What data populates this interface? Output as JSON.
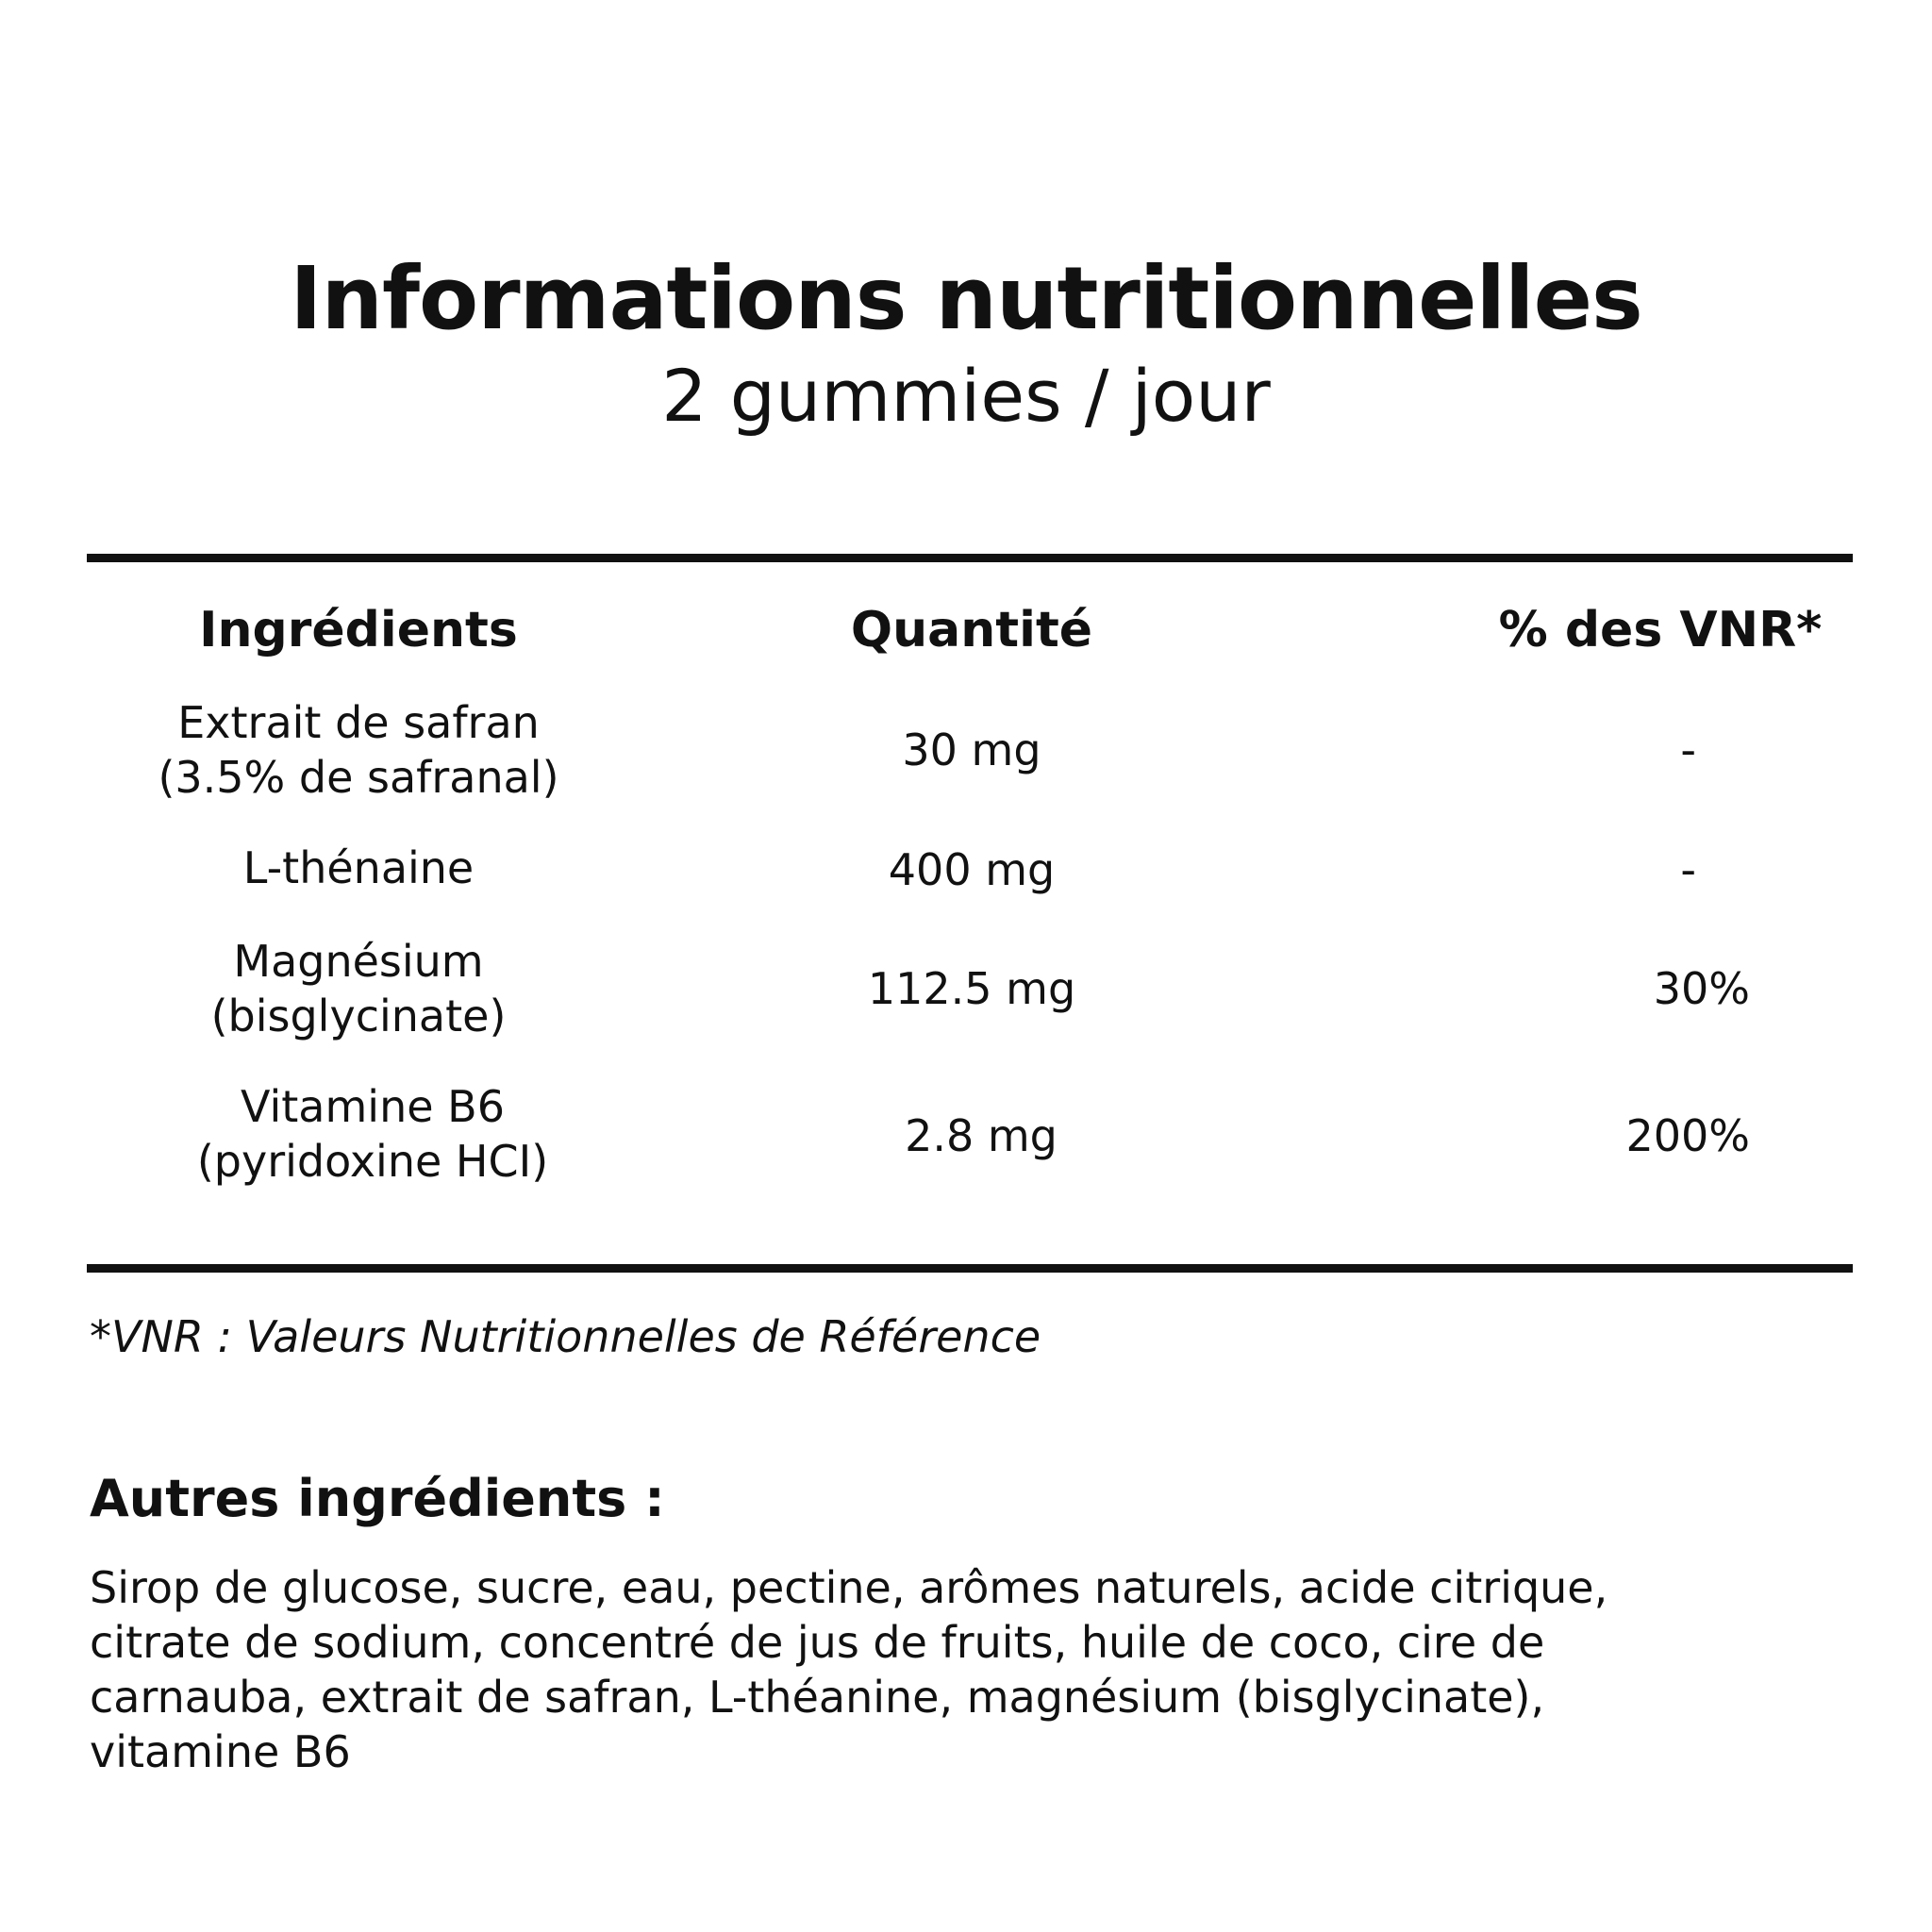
{
  "header": {
    "title": "Informations nutritionnelles",
    "subtitle": "2 gummies / jour"
  },
  "table": {
    "headers": {
      "ingredients": "Ingrédients",
      "quantity": "Quantité",
      "vnr": "% des VNR*"
    },
    "rows": [
      {
        "ingredient_line1": "Extrait de safran",
        "ingredient_line2": "(3.5% de safranal)",
        "quantity": "30 mg",
        "vnr": "-"
      },
      {
        "ingredient_line1": "L-thénaine",
        "ingredient_line2": "",
        "quantity": "400 mg",
        "vnr": "-"
      },
      {
        "ingredient_line1": "Magnésium",
        "ingredient_line2": "(bisglycinate)",
        "quantity": "112.5 mg",
        "vnr": "30%"
      },
      {
        "ingredient_line1": "Vitamine B6",
        "ingredient_line2": "(pyridoxine HCI)",
        "quantity": "2.8 mg",
        "vnr": "200%"
      }
    ]
  },
  "footnote": "*VNR : Valeurs Nutritionnelles de Référence",
  "other_ingredients": {
    "title": "Autres ingrédients :",
    "lines": [
      "Sirop de glucose, sucre, eau, pectine, arômes naturels, acide citrique,",
      "citrate de sodium, concentré de jus de fruits, huile de coco, cire de",
      "carnauba, extrait de safran, L-théanine, magnésium (bisglycinate),",
      "vitamine B6"
    ]
  }
}
